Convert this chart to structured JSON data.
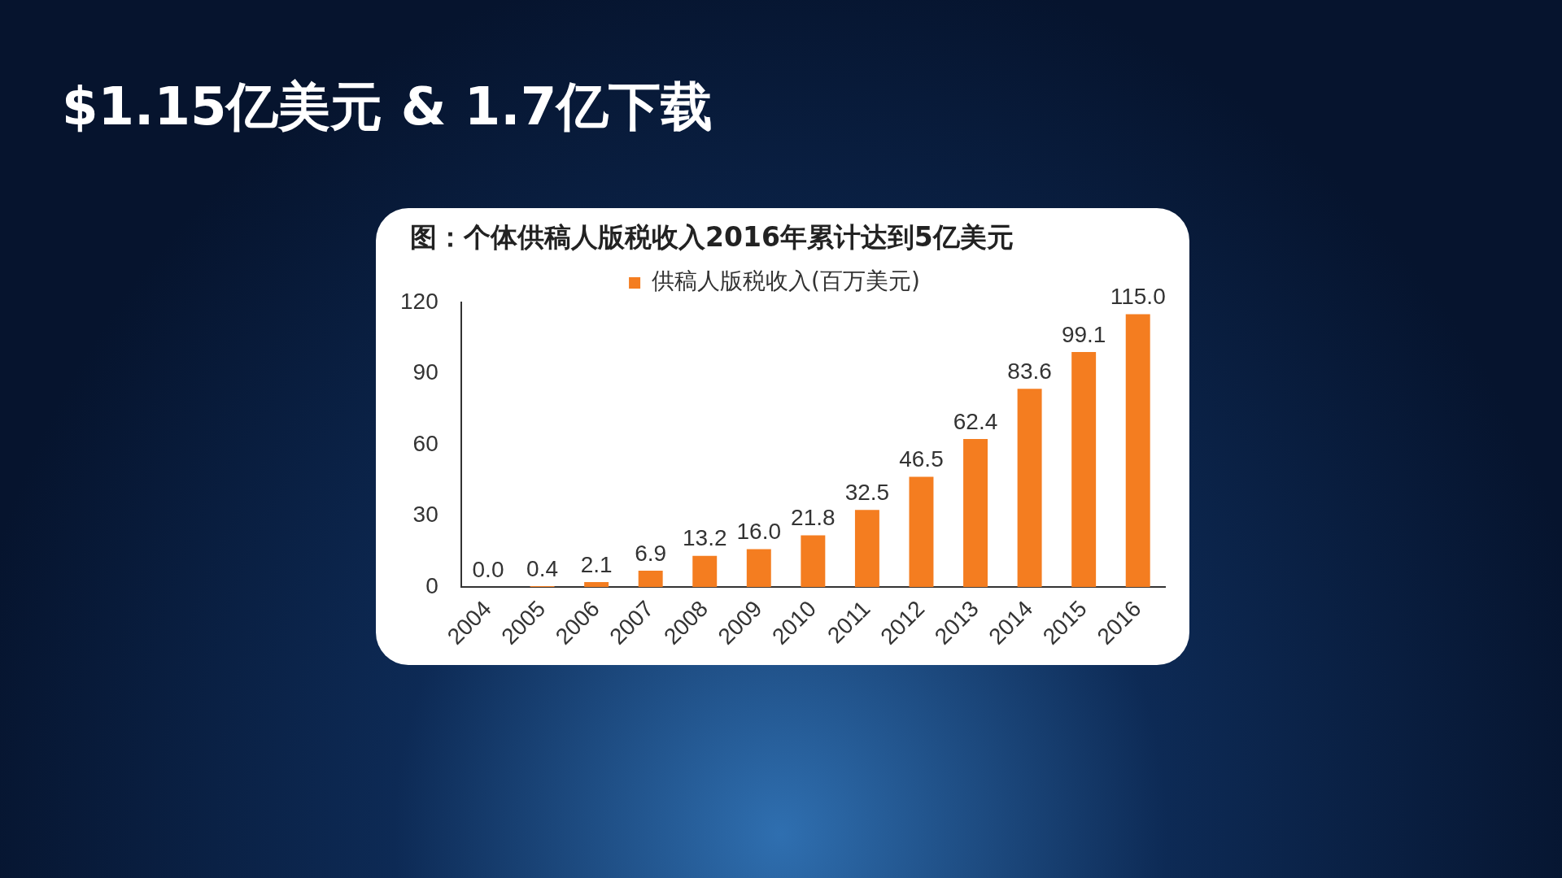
{
  "chart_data": {
    "type": "bar",
    "title": "$1.15亿美元 & 1.7亿下载",
    "subtitle": "图：个体供稿人版税收入2016年累计达到5亿美元",
    "categories": [
      "2004",
      "2005",
      "2006",
      "2007",
      "2008",
      "2009",
      "2010",
      "2011",
      "2012",
      "2013",
      "2014",
      "2015",
      "2016"
    ],
    "series": [
      {
        "name": "供稿人版税收入(百万美元)",
        "color": "#f47d20",
        "values": [
          0.0,
          0.4,
          2.1,
          6.9,
          13.2,
          16.0,
          21.8,
          32.5,
          46.5,
          62.4,
          83.6,
          99.1,
          115.0
        ],
        "value_labels": [
          "0.0",
          "0.4",
          "2.1",
          "6.9",
          "13.2",
          "16.0",
          "21.8",
          "32.5",
          "46.5",
          "62.4",
          "83.6",
          "99.1",
          "115.0"
        ]
      }
    ],
    "ylim": [
      0,
      120
    ],
    "yticks": [
      0,
      30,
      60,
      90,
      120
    ],
    "grid": false,
    "legend": "top"
  }
}
